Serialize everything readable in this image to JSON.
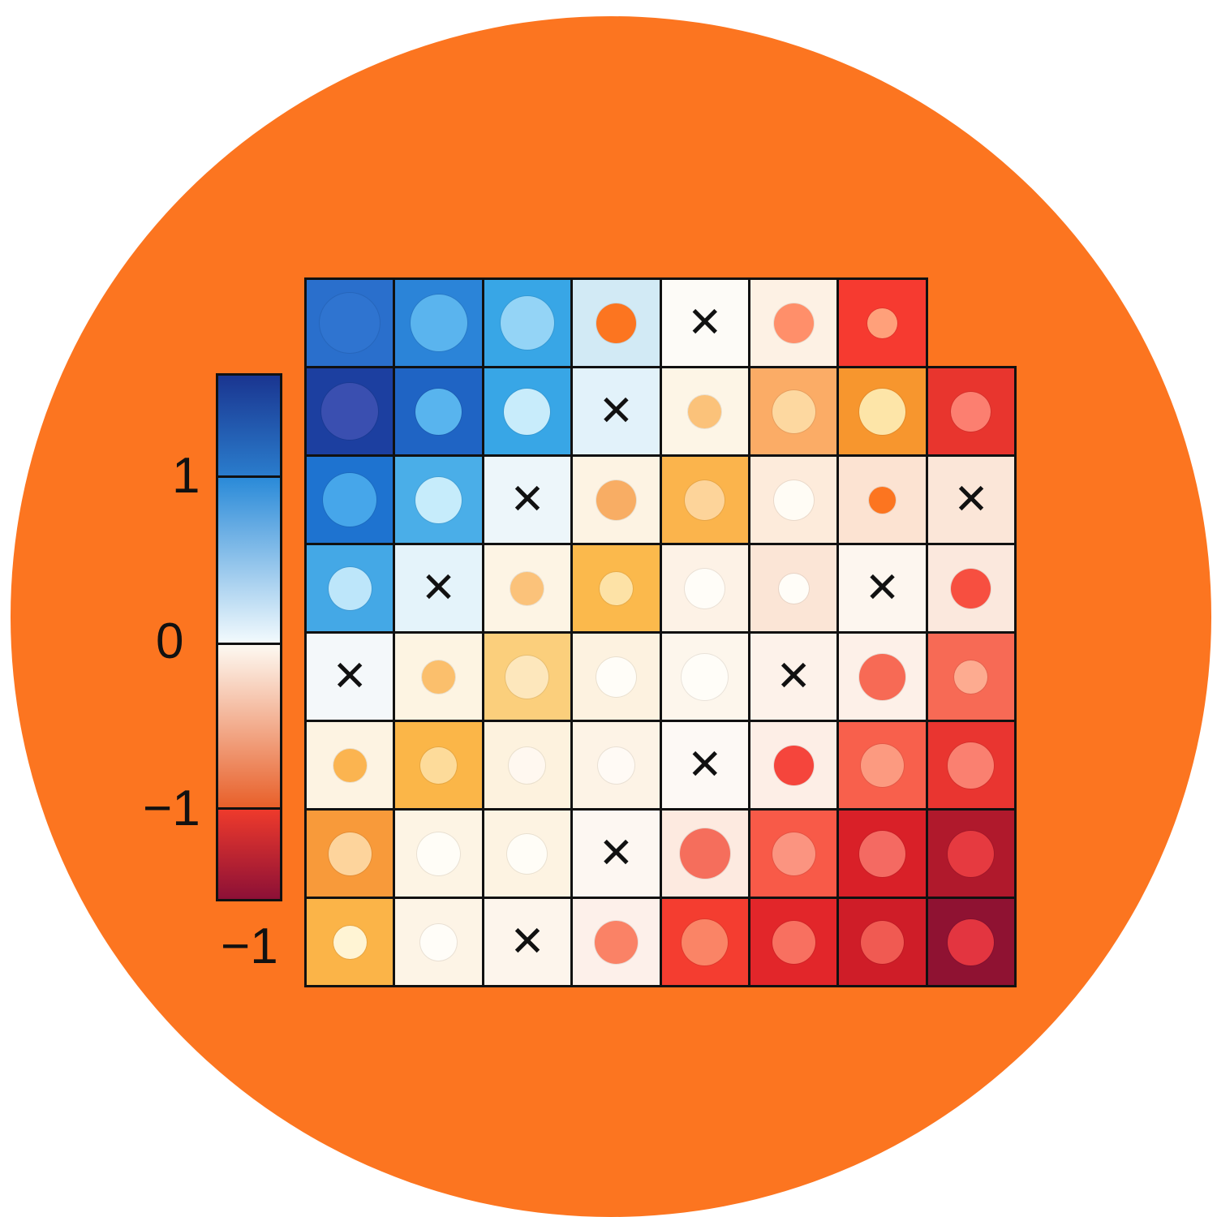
{
  "chart_data": {
    "type": "heatmap",
    "title": "",
    "colorbar": {
      "tick_labels": [
        "1",
        "0",
        "−1"
      ],
      "extra_label": "−1",
      "segments": [
        {
          "from": "#1a3590",
          "to": "#2a7ccc"
        },
        {
          "from": "#2a8ad8",
          "to": "#f2fafd"
        },
        {
          "from": "#fdf9f2",
          "to": "#e8602a"
        },
        {
          "from": "#ee3a2c",
          "to": "#8c1036"
        }
      ]
    },
    "rows": [
      [
        [
          "#2a6fcc",
          "c",
          "#2f74d0",
          0.9
        ],
        [
          "#2b84d8",
          "c",
          "#5ab4ee",
          0.85
        ],
        [
          "#38a6e6",
          "c",
          "#94d4f6",
          0.8
        ],
        [
          "#d2eaf5",
          "c",
          "#fc7520",
          0.6
        ],
        [
          "#fdfbf7",
          "x"
        ],
        [
          "#fdf1e4",
          "c",
          "#ff8f6a",
          0.6
        ],
        [
          "#f63a30",
          "c",
          "#ffa07a",
          0.45
        ],
        null
      ],
      [
        [
          "#1c3fa0",
          "c",
          "#3a4fb0",
          0.85
        ],
        [
          "#1f64c4",
          "c",
          "#58b4ee",
          0.7
        ],
        [
          "#38a6e6",
          "c",
          "#c8ecfb",
          0.7
        ],
        [
          "#e2f2fa",
          "x"
        ],
        [
          "#fdf5e6",
          "c",
          "#fbc27a",
          0.5
        ],
        [
          "#fbac66",
          "c",
          "#fdd8a0",
          0.65
        ],
        [
          "#f7962e",
          "c",
          "#fde5a8",
          0.7
        ],
        [
          "#e8352e",
          "c",
          "#fc7f70",
          0.6
        ]
      ],
      [
        [
          "#1e73d0",
          "c",
          "#46a6ea",
          0.8
        ],
        [
          "#4aaee8",
          "c",
          "#c6ecfb",
          0.7
        ],
        [
          "#edf6fa",
          "x"
        ],
        [
          "#fdf3e3",
          "c",
          "#f8ad64",
          0.6
        ],
        [
          "#fbb44c",
          "c",
          "#fdd49a",
          0.6
        ],
        [
          "#fdebdb",
          "c",
          "#fffcf5",
          0.6
        ],
        [
          "#fce3d2",
          "c",
          "#fc7520",
          0.4
        ],
        [
          "#fbe6d8",
          "x"
        ]
      ],
      [
        [
          "#44a8e6",
          "c",
          "#bde6fa",
          0.65
        ],
        [
          "#e4f3fa",
          "x"
        ],
        [
          "#fdf4e4",
          "c",
          "#fbc27a",
          0.5
        ],
        [
          "#fbb94c",
          "c",
          "#fde2a6",
          0.5
        ],
        [
          "#fdf2e6",
          "c",
          "#fffdf8",
          0.6
        ],
        [
          "#fbe5d6",
          "c",
          "#fffdf8",
          0.45
        ],
        [
          "#fdf6ef",
          "x"
        ],
        [
          "#fbe8dd",
          "c",
          "#f74f40",
          0.6
        ]
      ],
      [
        [
          "#f4f8fa",
          "x"
        ],
        [
          "#fdf4e2",
          "c",
          "#fbbf6c",
          0.5
        ],
        [
          "#fbcf7c",
          "c",
          "#fde7bc",
          0.65
        ],
        [
          "#fdf2e0",
          "c",
          "#fffdf8",
          0.6
        ],
        [
          "#fdf6ec",
          "c",
          "#fffdf8",
          0.7
        ],
        [
          "#fdf2ea",
          "x"
        ],
        [
          "#fdf0e8",
          "c",
          "#f76a55",
          0.7
        ],
        [
          "#f76a55",
          "c",
          "#fdab90",
          0.5
        ]
      ],
      [
        [
          "#fdf3e2",
          "c",
          "#fbb450",
          0.5
        ],
        [
          "#fbb648",
          "c",
          "#fddb9a",
          0.55
        ],
        [
          "#fdf2de",
          "c",
          "#fff8f0",
          0.55
        ],
        [
          "#fdf3e6",
          "c",
          "#fffaf5",
          0.55
        ],
        [
          "#fdf9f5",
          "x"
        ],
        [
          "#fdeee6",
          "c",
          "#f5453c",
          0.6
        ],
        [
          "#f8604c",
          "c",
          "#fc9a80",
          0.65
        ],
        [
          "#e93530",
          "c",
          "#fa8070",
          0.7
        ]
      ],
      [
        [
          "#f89a3a",
          "c",
          "#fdd49c",
          0.65
        ],
        [
          "#fdf4e4",
          "c",
          "#fffdf7",
          0.65
        ],
        [
          "#fdf3e2",
          "c",
          "#fffdf7",
          0.6
        ],
        [
          "#fdf7f2",
          "x"
        ],
        [
          "#fdeae0",
          "c",
          "#f56e5c",
          0.75
        ],
        [
          "#f85a48",
          "c",
          "#fb9480",
          0.65
        ],
        [
          "#d92028",
          "c",
          "#f46a62",
          0.7
        ],
        [
          "#b0192c",
          "c",
          "#e63a40",
          0.7
        ]
      ],
      [
        [
          "#fbb448",
          "c",
          "#fff4d4",
          0.5
        ],
        [
          "#fdf4e6",
          "c",
          "#fffdf8",
          0.55
        ],
        [
          "#fdf5ec",
          "x"
        ],
        [
          "#fdf0ea",
          "c",
          "#fa8266",
          0.65
        ],
        [
          "#f43d30",
          "c",
          "#fa8466",
          0.7
        ],
        [
          "#e2262a",
          "c",
          "#f87060",
          0.65
        ],
        [
          "#cf1d28",
          "c",
          "#f05a52",
          0.65
        ],
        [
          "#8f1232",
          "c",
          "#e33540",
          0.7
        ]
      ]
    ],
    "background": "#fc7520"
  }
}
